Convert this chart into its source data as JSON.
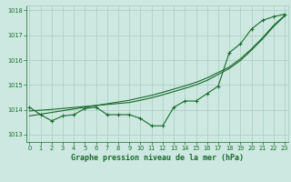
{
  "hours": [
    0,
    1,
    2,
    3,
    4,
    5,
    6,
    7,
    8,
    9,
    10,
    11,
    12,
    13,
    14,
    15,
    16,
    17,
    18,
    19,
    20,
    21,
    22,
    23
  ],
  "pressure_main": [
    1014.1,
    1013.8,
    1013.55,
    1013.75,
    1013.8,
    1014.05,
    1014.1,
    1013.8,
    1013.8,
    1013.8,
    1013.65,
    1013.35,
    1013.35,
    1014.1,
    1014.35,
    1014.35,
    1014.65,
    1014.95,
    1016.3,
    1016.65,
    1017.25,
    1017.6,
    1017.75,
    1017.85
  ],
  "trend_line1": [
    1013.75,
    1013.82,
    1013.89,
    1013.96,
    1014.03,
    1014.1,
    1014.17,
    1014.24,
    1014.31,
    1014.38,
    1014.48,
    1014.58,
    1014.7,
    1014.83,
    1014.96,
    1015.1,
    1015.28,
    1015.5,
    1015.72,
    1016.05,
    1016.45,
    1016.9,
    1017.4,
    1017.8
  ],
  "trend_line2": [
    1013.95,
    1013.98,
    1014.01,
    1014.05,
    1014.09,
    1014.13,
    1014.17,
    1014.21,
    1014.25,
    1014.29,
    1014.38,
    1014.48,
    1014.6,
    1014.73,
    1014.86,
    1015.0,
    1015.18,
    1015.42,
    1015.66,
    1015.98,
    1016.4,
    1016.85,
    1017.35,
    1017.78
  ],
  "bg_color": "#cce8e0",
  "grid_color": "#aaccC4",
  "line_color": "#1a6b2e",
  "ylabel_ticks": [
    1013,
    1014,
    1015,
    1016,
    1017,
    1018
  ],
  "xlabel": "Graphe pression niveau de la mer (hPa)",
  "ylim": [
    1012.7,
    1018.2
  ],
  "xlim": [
    -0.3,
    23.3
  ],
  "fig_width": 3.2,
  "fig_height": 2.0,
  "dpi": 100
}
